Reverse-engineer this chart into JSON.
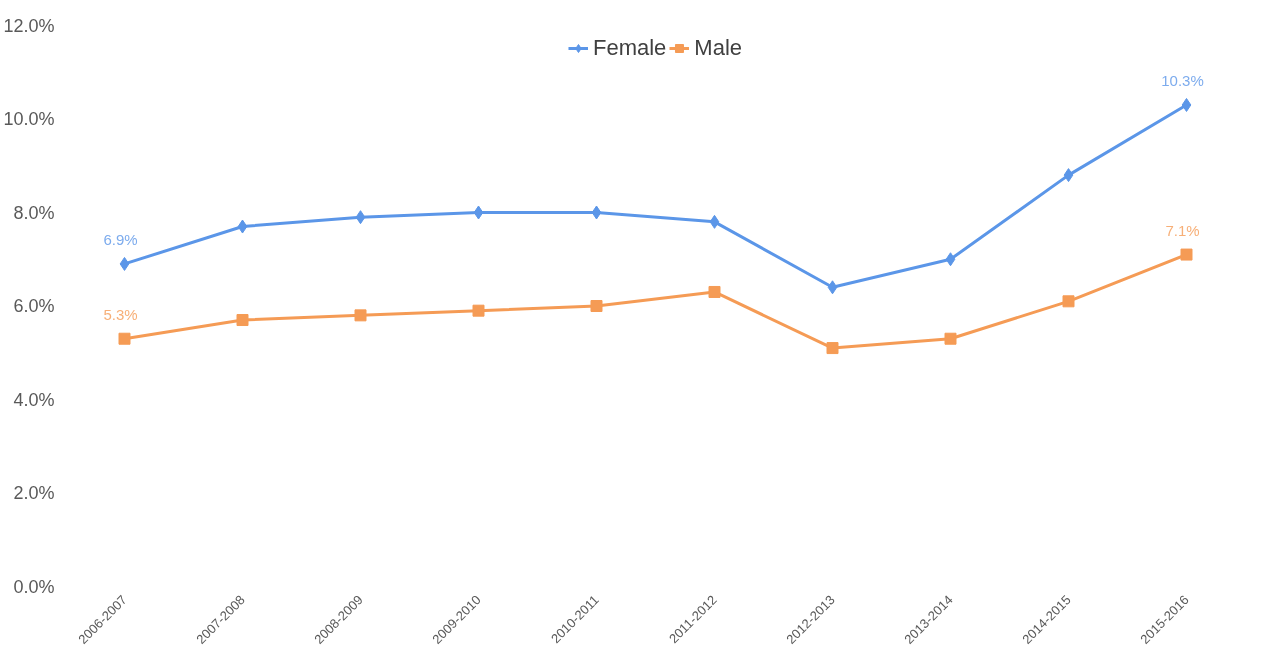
{
  "chart_data": {
    "type": "line",
    "categories": [
      "2006-2007",
      "2007-2008",
      "2008-2009",
      "2009-2010",
      "2010-2011",
      "2011-2012",
      "2012-2013",
      "2013-2014",
      "2014-2015",
      "2015-2016"
    ],
    "series": [
      {
        "name": "Female",
        "color": "#5b96e8",
        "marker": "diamond",
        "values": [
          6.9,
          7.7,
          7.9,
          8.0,
          8.0,
          7.8,
          6.4,
          7.0,
          8.8,
          10.3
        ],
        "value_labels": [
          "6.9%",
          null,
          null,
          null,
          null,
          null,
          null,
          null,
          null,
          "10.3%"
        ]
      },
      {
        "name": "Male",
        "color": "#f59b55",
        "marker": "square",
        "values": [
          5.3,
          5.7,
          5.8,
          5.9,
          6.0,
          6.3,
          5.1,
          5.3,
          6.1,
          7.1
        ],
        "value_labels": [
          "5.3%",
          null,
          null,
          null,
          null,
          null,
          null,
          null,
          null,
          "7.1%"
        ]
      }
    ],
    "ylim": [
      0,
      12
    ],
    "yticks": [
      {
        "value": 0,
        "label": "0.0%"
      },
      {
        "value": 2,
        "label": "2.0%"
      },
      {
        "value": 4,
        "label": "4.0%"
      },
      {
        "value": 6,
        "label": "6.0%"
      },
      {
        "value": 8,
        "label": "8.0%"
      },
      {
        "value": 10,
        "label": "10.0%"
      },
      {
        "value": 12,
        "label": "12.0%"
      }
    ],
    "grid": false,
    "legend": "top",
    "line_style": "solid"
  }
}
